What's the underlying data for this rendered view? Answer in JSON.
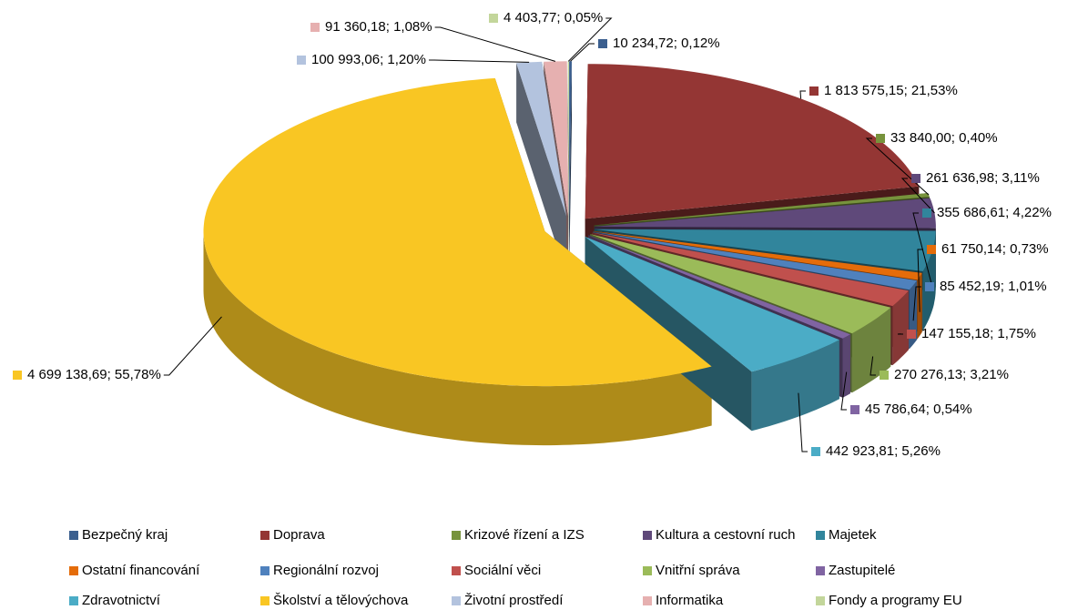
{
  "chart_data": {
    "type": "pie3d",
    "categories": [
      "Bezpečný kraj",
      "Doprava",
      "Krizové řízení a IZS",
      "Kultura a cestovní ruch",
      "Majetek",
      "Ostatní financování",
      "Regionální rozvoj",
      "Sociální věci",
      "Vnitřní správa",
      "Zastupitelé",
      "Zdravotnictví",
      "Školství a tělovýchova",
      "Životní prostředí",
      "Informatika",
      "Fondy a programy EU"
    ],
    "values": [
      10234.72,
      1813575.15,
      33840.0,
      261636.98,
      355686.61,
      61750.14,
      85452.19,
      147155.18,
      270276.13,
      45786.64,
      442923.81,
      4699138.69,
      100993.06,
      91360.18,
      4403.77
    ],
    "value_labels": [
      "10 234,72; 0,12%",
      "1 813 575,15; 21,53%",
      "33 840,00; 0,40%",
      "261 636,98; 3,11%",
      "355 686,61; 4,22%",
      "61 750,14; 0,73%",
      "85 452,19; 1,01%",
      "147 155,18; 1,75%",
      "270 276,13; 3,21%",
      "45 786,64; 0,54%",
      "442 923,81; 5,26%",
      "4 699 138,69; 55,78%",
      "100 993,06; 1,20%",
      "91 360,18; 1,08%",
      "4 403,77; 0,05%"
    ],
    "colors": [
      "#3b5f8f",
      "#943634",
      "#77933c",
      "#5f497a",
      "#31859c",
      "#e46c0a",
      "#4f81bd",
      "#c0504d",
      "#9bbb59",
      "#8064a2",
      "#4bacc6",
      "#f9c623",
      "#b3c3de",
      "#e6b0b0",
      "#c3d69b"
    ],
    "legend": "bottom"
  }
}
